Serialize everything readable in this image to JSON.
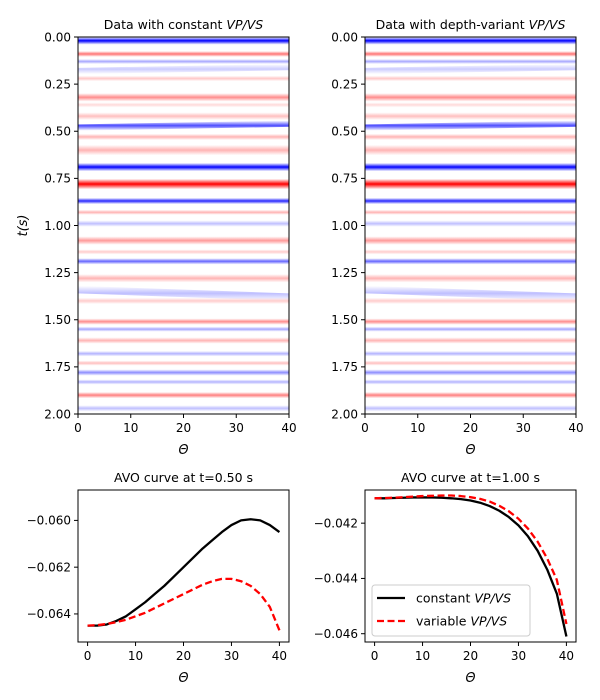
{
  "figure": {
    "panels": [
      {
        "id": "gather_const",
        "title_prefix": "Data with constant ",
        "title_em": "VP/VS",
        "xlabel": "Θ",
        "ylabel": "t(s)",
        "xticks": [
          "0",
          "10",
          "20",
          "30",
          "40"
        ],
        "yticks": [
          "0.00",
          "0.25",
          "0.50",
          "0.75",
          "1.00",
          "1.25",
          "1.50",
          "1.75",
          "2.00"
        ]
      },
      {
        "id": "gather_var",
        "title_prefix": "Data with depth-variant ",
        "title_em": "VP/VS",
        "xlabel": "Θ",
        "xticks": [
          "0",
          "10",
          "20",
          "30",
          "40"
        ],
        "yticks": [
          "0.00",
          "0.25",
          "0.50",
          "0.75",
          "1.00",
          "1.25",
          "1.50",
          "1.75",
          "2.00"
        ]
      },
      {
        "id": "avo_050",
        "title": "AVO curve at t=0.50 s",
        "xlabel": "Θ",
        "xticks": [
          "0",
          "10",
          "20",
          "30",
          "40"
        ],
        "yticks": [
          "−0.060",
          "−0.062",
          "−0.064"
        ]
      },
      {
        "id": "avo_100",
        "title": "AVO curve at t=1.00 s",
        "xlabel": "Θ",
        "xticks": [
          "0",
          "10",
          "20",
          "30",
          "40"
        ],
        "yticks": [
          "−0.042",
          "−0.044",
          "−0.046"
        ],
        "legend": [
          {
            "prefix": "constant ",
            "em": "VP/VS"
          },
          {
            "prefix": "variable ",
            "em": "VP/VS"
          }
        ]
      }
    ]
  },
  "chart_data": [
    {
      "type": "heatmap",
      "title": "Data with constant VP/VS",
      "xlabel": "Θ",
      "ylabel": "t(s)",
      "xlim": [
        0,
        40
      ],
      "ylim": [
        2.0,
        0.0
      ],
      "colormap": "bwr",
      "colors": {
        "positive": "#ff0000",
        "negative": "#0000ff",
        "zero": "#ffffff"
      },
      "bands": [
        {
          "t": 0.02,
          "amp": -1.0,
          "width": 0.018,
          "slope": 0.0
        },
        {
          "t": 0.09,
          "amp": 0.55,
          "width": 0.014,
          "slope": 0.0
        },
        {
          "t": 0.13,
          "amp": -0.35,
          "width": 0.012,
          "slope": 0.0
        },
        {
          "t": 0.18,
          "amp": -0.2,
          "width": 0.015,
          "slope": -0.0005
        },
        {
          "t": 0.22,
          "amp": 0.22,
          "width": 0.013,
          "slope": 0.0
        },
        {
          "t": 0.32,
          "amp": 0.45,
          "width": 0.02,
          "slope": 0.0
        },
        {
          "t": 0.36,
          "amp": 0.15,
          "width": 0.012,
          "slope": 0.0
        },
        {
          "t": 0.42,
          "amp": 0.25,
          "width": 0.018,
          "slope": 0.0
        },
        {
          "t": 0.48,
          "amp": -0.7,
          "width": 0.015,
          "slope": -0.0005
        },
        {
          "t": 0.53,
          "amp": 0.3,
          "width": 0.015,
          "slope": 0.0
        },
        {
          "t": 0.6,
          "amp": 0.3,
          "width": 0.025,
          "slope": 0.0
        },
        {
          "t": 0.69,
          "amp": -1.0,
          "width": 0.02,
          "slope": 0.0
        },
        {
          "t": 0.78,
          "amp": 1.0,
          "width": 0.025,
          "slope": 0.0
        },
        {
          "t": 0.87,
          "amp": -0.85,
          "width": 0.015,
          "slope": 0.0
        },
        {
          "t": 0.93,
          "amp": 0.3,
          "width": 0.012,
          "slope": 0.0
        },
        {
          "t": 0.99,
          "amp": -0.25,
          "width": 0.015,
          "slope": 0.0
        },
        {
          "t": 1.08,
          "amp": 0.4,
          "width": 0.02,
          "slope": 0.0
        },
        {
          "t": 1.14,
          "amp": 0.2,
          "width": 0.012,
          "slope": 0.0
        },
        {
          "t": 1.19,
          "amp": -0.6,
          "width": 0.015,
          "slope": 0.0
        },
        {
          "t": 1.28,
          "amp": 0.3,
          "width": 0.02,
          "slope": 0.0
        },
        {
          "t": 1.34,
          "amp": -0.25,
          "width": 0.018,
          "slope": 0.001
        },
        {
          "t": 1.4,
          "amp": 0.2,
          "width": 0.015,
          "slope": 0.0
        },
        {
          "t": 1.51,
          "amp": 0.45,
          "width": 0.015,
          "slope": 0.0
        },
        {
          "t": 1.55,
          "amp": -0.35,
          "width": 0.012,
          "slope": 0.0
        },
        {
          "t": 1.61,
          "amp": 0.3,
          "width": 0.015,
          "slope": 0.0
        },
        {
          "t": 1.68,
          "amp": -0.3,
          "width": 0.013,
          "slope": 0.0
        },
        {
          "t": 1.73,
          "amp": 0.25,
          "width": 0.012,
          "slope": 0.0
        },
        {
          "t": 1.78,
          "amp": -0.45,
          "width": 0.015,
          "slope": 0.0
        },
        {
          "t": 1.83,
          "amp": -0.3,
          "width": 0.012,
          "slope": 0.0
        },
        {
          "t": 1.9,
          "amp": 0.5,
          "width": 0.015,
          "slope": 0.0
        },
        {
          "t": 1.97,
          "amp": -0.25,
          "width": 0.015,
          "slope": 0.0
        }
      ]
    },
    {
      "type": "heatmap",
      "title": "Data with depth-variant VP/VS",
      "xlabel": "Θ",
      "xlim": [
        0,
        40
      ],
      "ylim": [
        2.0,
        0.0
      ],
      "colormap": "bwr",
      "colors": {
        "positive": "#ff0000",
        "negative": "#0000ff",
        "zero": "#ffffff"
      },
      "bands": [
        {
          "t": 0.02,
          "amp": -1.0,
          "width": 0.018,
          "slope": 0.0
        },
        {
          "t": 0.09,
          "amp": 0.55,
          "width": 0.014,
          "slope": 0.0
        },
        {
          "t": 0.13,
          "amp": -0.35,
          "width": 0.012,
          "slope": 0.0
        },
        {
          "t": 0.18,
          "amp": -0.2,
          "width": 0.015,
          "slope": -0.0005
        },
        {
          "t": 0.22,
          "amp": 0.22,
          "width": 0.013,
          "slope": 0.0
        },
        {
          "t": 0.32,
          "amp": 0.45,
          "width": 0.02,
          "slope": 0.0
        },
        {
          "t": 0.36,
          "amp": 0.15,
          "width": 0.012,
          "slope": 0.0
        },
        {
          "t": 0.42,
          "amp": 0.25,
          "width": 0.018,
          "slope": 0.0
        },
        {
          "t": 0.48,
          "amp": -0.7,
          "width": 0.015,
          "slope": -0.0005
        },
        {
          "t": 0.53,
          "amp": 0.3,
          "width": 0.015,
          "slope": 0.0
        },
        {
          "t": 0.6,
          "amp": 0.3,
          "width": 0.025,
          "slope": 0.0
        },
        {
          "t": 0.69,
          "amp": -1.0,
          "width": 0.02,
          "slope": 0.0
        },
        {
          "t": 0.78,
          "amp": 1.0,
          "width": 0.025,
          "slope": 0.0
        },
        {
          "t": 0.87,
          "amp": -0.85,
          "width": 0.015,
          "slope": 0.0
        },
        {
          "t": 0.93,
          "amp": 0.3,
          "width": 0.012,
          "slope": 0.0
        },
        {
          "t": 0.99,
          "amp": -0.25,
          "width": 0.015,
          "slope": 0.0
        },
        {
          "t": 1.08,
          "amp": 0.4,
          "width": 0.02,
          "slope": 0.0
        },
        {
          "t": 1.14,
          "amp": 0.2,
          "width": 0.012,
          "slope": 0.0
        },
        {
          "t": 1.19,
          "amp": -0.6,
          "width": 0.015,
          "slope": 0.0
        },
        {
          "t": 1.28,
          "amp": 0.3,
          "width": 0.02,
          "slope": 0.0
        },
        {
          "t": 1.34,
          "amp": -0.25,
          "width": 0.018,
          "slope": 0.001
        },
        {
          "t": 1.4,
          "amp": 0.2,
          "width": 0.015,
          "slope": 0.0
        },
        {
          "t": 1.51,
          "amp": 0.45,
          "width": 0.015,
          "slope": 0.0
        },
        {
          "t": 1.55,
          "amp": -0.35,
          "width": 0.012,
          "slope": 0.0
        },
        {
          "t": 1.61,
          "amp": 0.3,
          "width": 0.015,
          "slope": 0.0
        },
        {
          "t": 1.68,
          "amp": -0.3,
          "width": 0.013,
          "slope": 0.0
        },
        {
          "t": 1.73,
          "amp": 0.25,
          "width": 0.012,
          "slope": 0.0
        },
        {
          "t": 1.78,
          "amp": -0.45,
          "width": 0.015,
          "slope": 0.0
        },
        {
          "t": 1.83,
          "amp": -0.3,
          "width": 0.012,
          "slope": 0.0
        },
        {
          "t": 1.9,
          "amp": 0.5,
          "width": 0.015,
          "slope": 0.0
        },
        {
          "t": 1.97,
          "amp": -0.25,
          "width": 0.015,
          "slope": 0.0
        }
      ]
    },
    {
      "type": "line",
      "title": "AVO curve at t=0.50 s",
      "xlabel": "Θ",
      "xlim": [
        -2,
        42
      ],
      "ylim": [
        -0.0652,
        -0.0587
      ],
      "x": [
        0,
        2,
        4,
        6,
        8,
        10,
        12,
        14,
        16,
        18,
        20,
        22,
        24,
        26,
        28,
        30,
        32,
        34,
        36,
        38,
        40
      ],
      "series": [
        {
          "color": "#000000",
          "dash": "solid",
          "values": [
            -0.0645,
            -0.0645,
            -0.06445,
            -0.0643,
            -0.0641,
            -0.0638,
            -0.0635,
            -0.06315,
            -0.0628,
            -0.0624,
            -0.062,
            -0.0616,
            -0.0612,
            -0.06085,
            -0.0605,
            -0.0602,
            -0.06,
            -0.05995,
            -0.06,
            -0.0602,
            -0.0605
          ]
        },
        {
          "color": "#ff0000",
          "dash": "dashed",
          "values": [
            -0.0645,
            -0.06448,
            -0.06443,
            -0.06435,
            -0.06425,
            -0.0641,
            -0.06395,
            -0.06375,
            -0.06355,
            -0.06335,
            -0.06315,
            -0.06295,
            -0.06275,
            -0.0626,
            -0.0625,
            -0.0625,
            -0.0626,
            -0.0628,
            -0.06315,
            -0.0637,
            -0.0647
          ]
        }
      ]
    },
    {
      "type": "line",
      "title": "AVO curve at t=1.00 s",
      "xlabel": "Θ",
      "xlim": [
        -2,
        42
      ],
      "ylim": [
        -0.0463,
        -0.0408
      ],
      "x": [
        0,
        2,
        4,
        6,
        8,
        10,
        12,
        14,
        16,
        18,
        20,
        22,
        24,
        26,
        28,
        30,
        32,
        34,
        36,
        38,
        40
      ],
      "legend_position": "lower-left",
      "series": [
        {
          "name": "constant VP/VS",
          "color": "#000000",
          "dash": "solid",
          "values": [
            -0.0411,
            -0.0411,
            -0.04109,
            -0.04108,
            -0.04107,
            -0.04107,
            -0.04107,
            -0.04108,
            -0.0411,
            -0.04113,
            -0.04118,
            -0.04126,
            -0.04138,
            -0.04155,
            -0.04178,
            -0.04208,
            -0.04248,
            -0.043,
            -0.04368,
            -0.04455,
            -0.0461
          ]
        },
        {
          "name": "variable VP/VS",
          "color": "#ff0000",
          "dash": "dashed",
          "values": [
            -0.0411,
            -0.04109,
            -0.04108,
            -0.04106,
            -0.04104,
            -0.04102,
            -0.04101,
            -0.041,
            -0.041,
            -0.04102,
            -0.04106,
            -0.04112,
            -0.04122,
            -0.04137,
            -0.04157,
            -0.04184,
            -0.0422,
            -0.04267,
            -0.04328,
            -0.04405,
            -0.04565
          ]
        }
      ]
    }
  ]
}
